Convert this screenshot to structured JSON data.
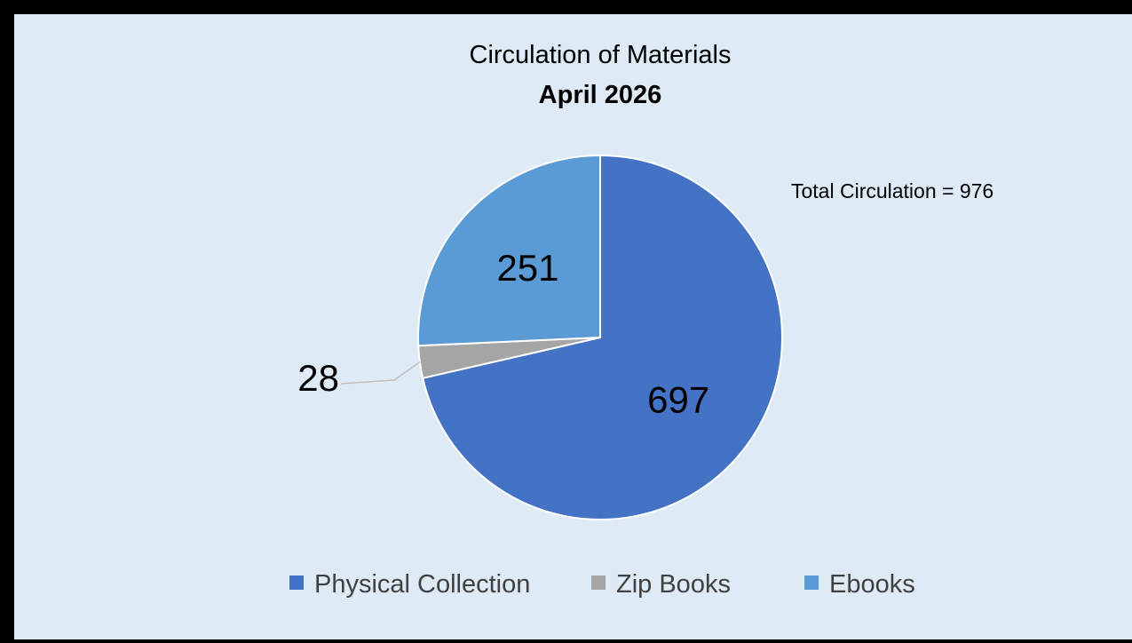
{
  "chart_data": {
    "type": "pie",
    "title": "Circulation of Materials",
    "subtitle": "April 2026",
    "annotation": "Total Circulation = 976",
    "start_angle_deg": 0,
    "direction": "clockwise",
    "slices": [
      {
        "label": "Physical Collection",
        "value": 697,
        "color": "#4472c4"
      },
      {
        "label": "Zip Books",
        "value": 28,
        "color": "#a5a5a5"
      },
      {
        "label": "Ebooks",
        "value": 251,
        "color": "#5b9bd5"
      }
    ],
    "legend_position": "bottom",
    "data_labels": true
  }
}
